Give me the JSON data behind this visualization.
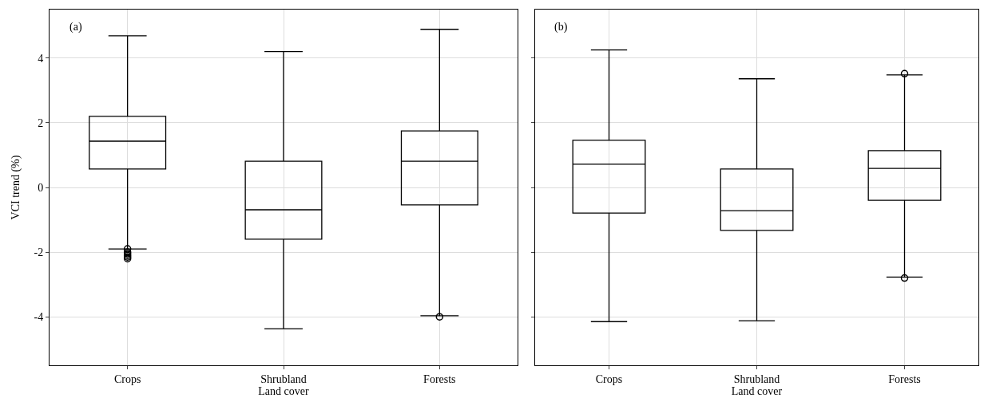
{
  "chart_data": [
    {
      "type": "box",
      "xlabel": "Land cover",
      "ylabel": "VCI trend (%)",
      "annotations": [
        "(a)"
      ],
      "categories": [
        "Crops",
        "Shrubland",
        "Forests"
      ],
      "color": "#000000",
      "marker": "circle",
      "grid": true,
      "ylim": [
        -5.5,
        5.5
      ],
      "yticks": [
        -4,
        -2,
        0,
        2,
        4
      ],
      "boxes": [
        {
          "low": -1.9,
          "q1": 0.57,
          "median": 1.43,
          "q3": 2.2,
          "high": 4.69,
          "outliers": [
            -1.9,
            -2.0,
            -2.05,
            -2.1,
            -2.15,
            -2.2
          ]
        },
        {
          "low": -4.37,
          "q1": -1.6,
          "median": -0.69,
          "q3": 0.81,
          "high": 4.2
        },
        {
          "low": -3.97,
          "q1": -0.54,
          "median": 0.81,
          "q3": 1.75,
          "high": 4.89,
          "outliers": [
            -4.0
          ]
        }
      ]
    },
    {
      "type": "box",
      "xlabel": "Land cover",
      "annotations": [
        "(b)"
      ],
      "categories": [
        "Crops",
        "Shrubland",
        "Forests"
      ],
      "color": "#000000",
      "marker": "circle",
      "grid": true,
      "ylim": [
        -5.5,
        5.5
      ],
      "yticks": [
        -4,
        -2,
        0,
        2,
        4
      ],
      "tick_labels": "x",
      "boxes": [
        {
          "low": -4.15,
          "q1": -0.79,
          "median": 0.72,
          "q3": 1.46,
          "high": 4.25
        },
        {
          "low": -4.12,
          "q1": -1.33,
          "median": -0.72,
          "q3": 0.57,
          "high": 3.36
        },
        {
          "low": -2.77,
          "q1": -0.4,
          "median": 0.59,
          "q3": 1.14,
          "high": 3.48,
          "outliers": [
            3.52,
            -2.8
          ]
        }
      ]
    }
  ]
}
